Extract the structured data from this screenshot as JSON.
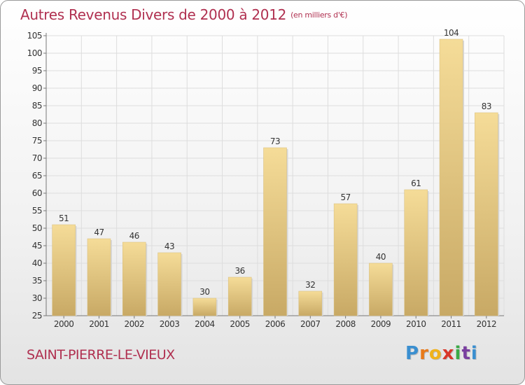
{
  "header": {
    "title": "Autres Revenus Divers de 2000 à 2012",
    "subtitle": "(en milliers d'€)"
  },
  "footer": {
    "commune": "SAINT-PIERRE-LE-VIEUX",
    "logo_letters": [
      "P",
      "r",
      "o",
      "x",
      "i",
      "t",
      "i"
    ],
    "logo_colors": [
      "#3a8fd0",
      "#e87a1a",
      "#f0b21c",
      "#d8362a",
      "#3aaa46",
      "#7a3fa0",
      "#3a8fd0"
    ]
  },
  "chart_data": {
    "type": "bar",
    "title": "Autres Revenus Divers de 2000 à 2012",
    "subtitle": "(en milliers d'€)",
    "categories": [
      "2000",
      "2001",
      "2002",
      "2003",
      "2004",
      "2005",
      "2006",
      "2007",
      "2008",
      "2009",
      "2010",
      "2011",
      "2012"
    ],
    "values": [
      51,
      47,
      46,
      43,
      30,
      36,
      73,
      32,
      57,
      40,
      61,
      104,
      83
    ],
    "ylim": [
      25,
      105
    ],
    "yticks": [
      25,
      30,
      35,
      40,
      45,
      50,
      55,
      60,
      65,
      70,
      75,
      80,
      85,
      90,
      95,
      100,
      105
    ],
    "grid": true,
    "bar_color": "#e8cf84",
    "xlabel": "",
    "ylabel": ""
  }
}
